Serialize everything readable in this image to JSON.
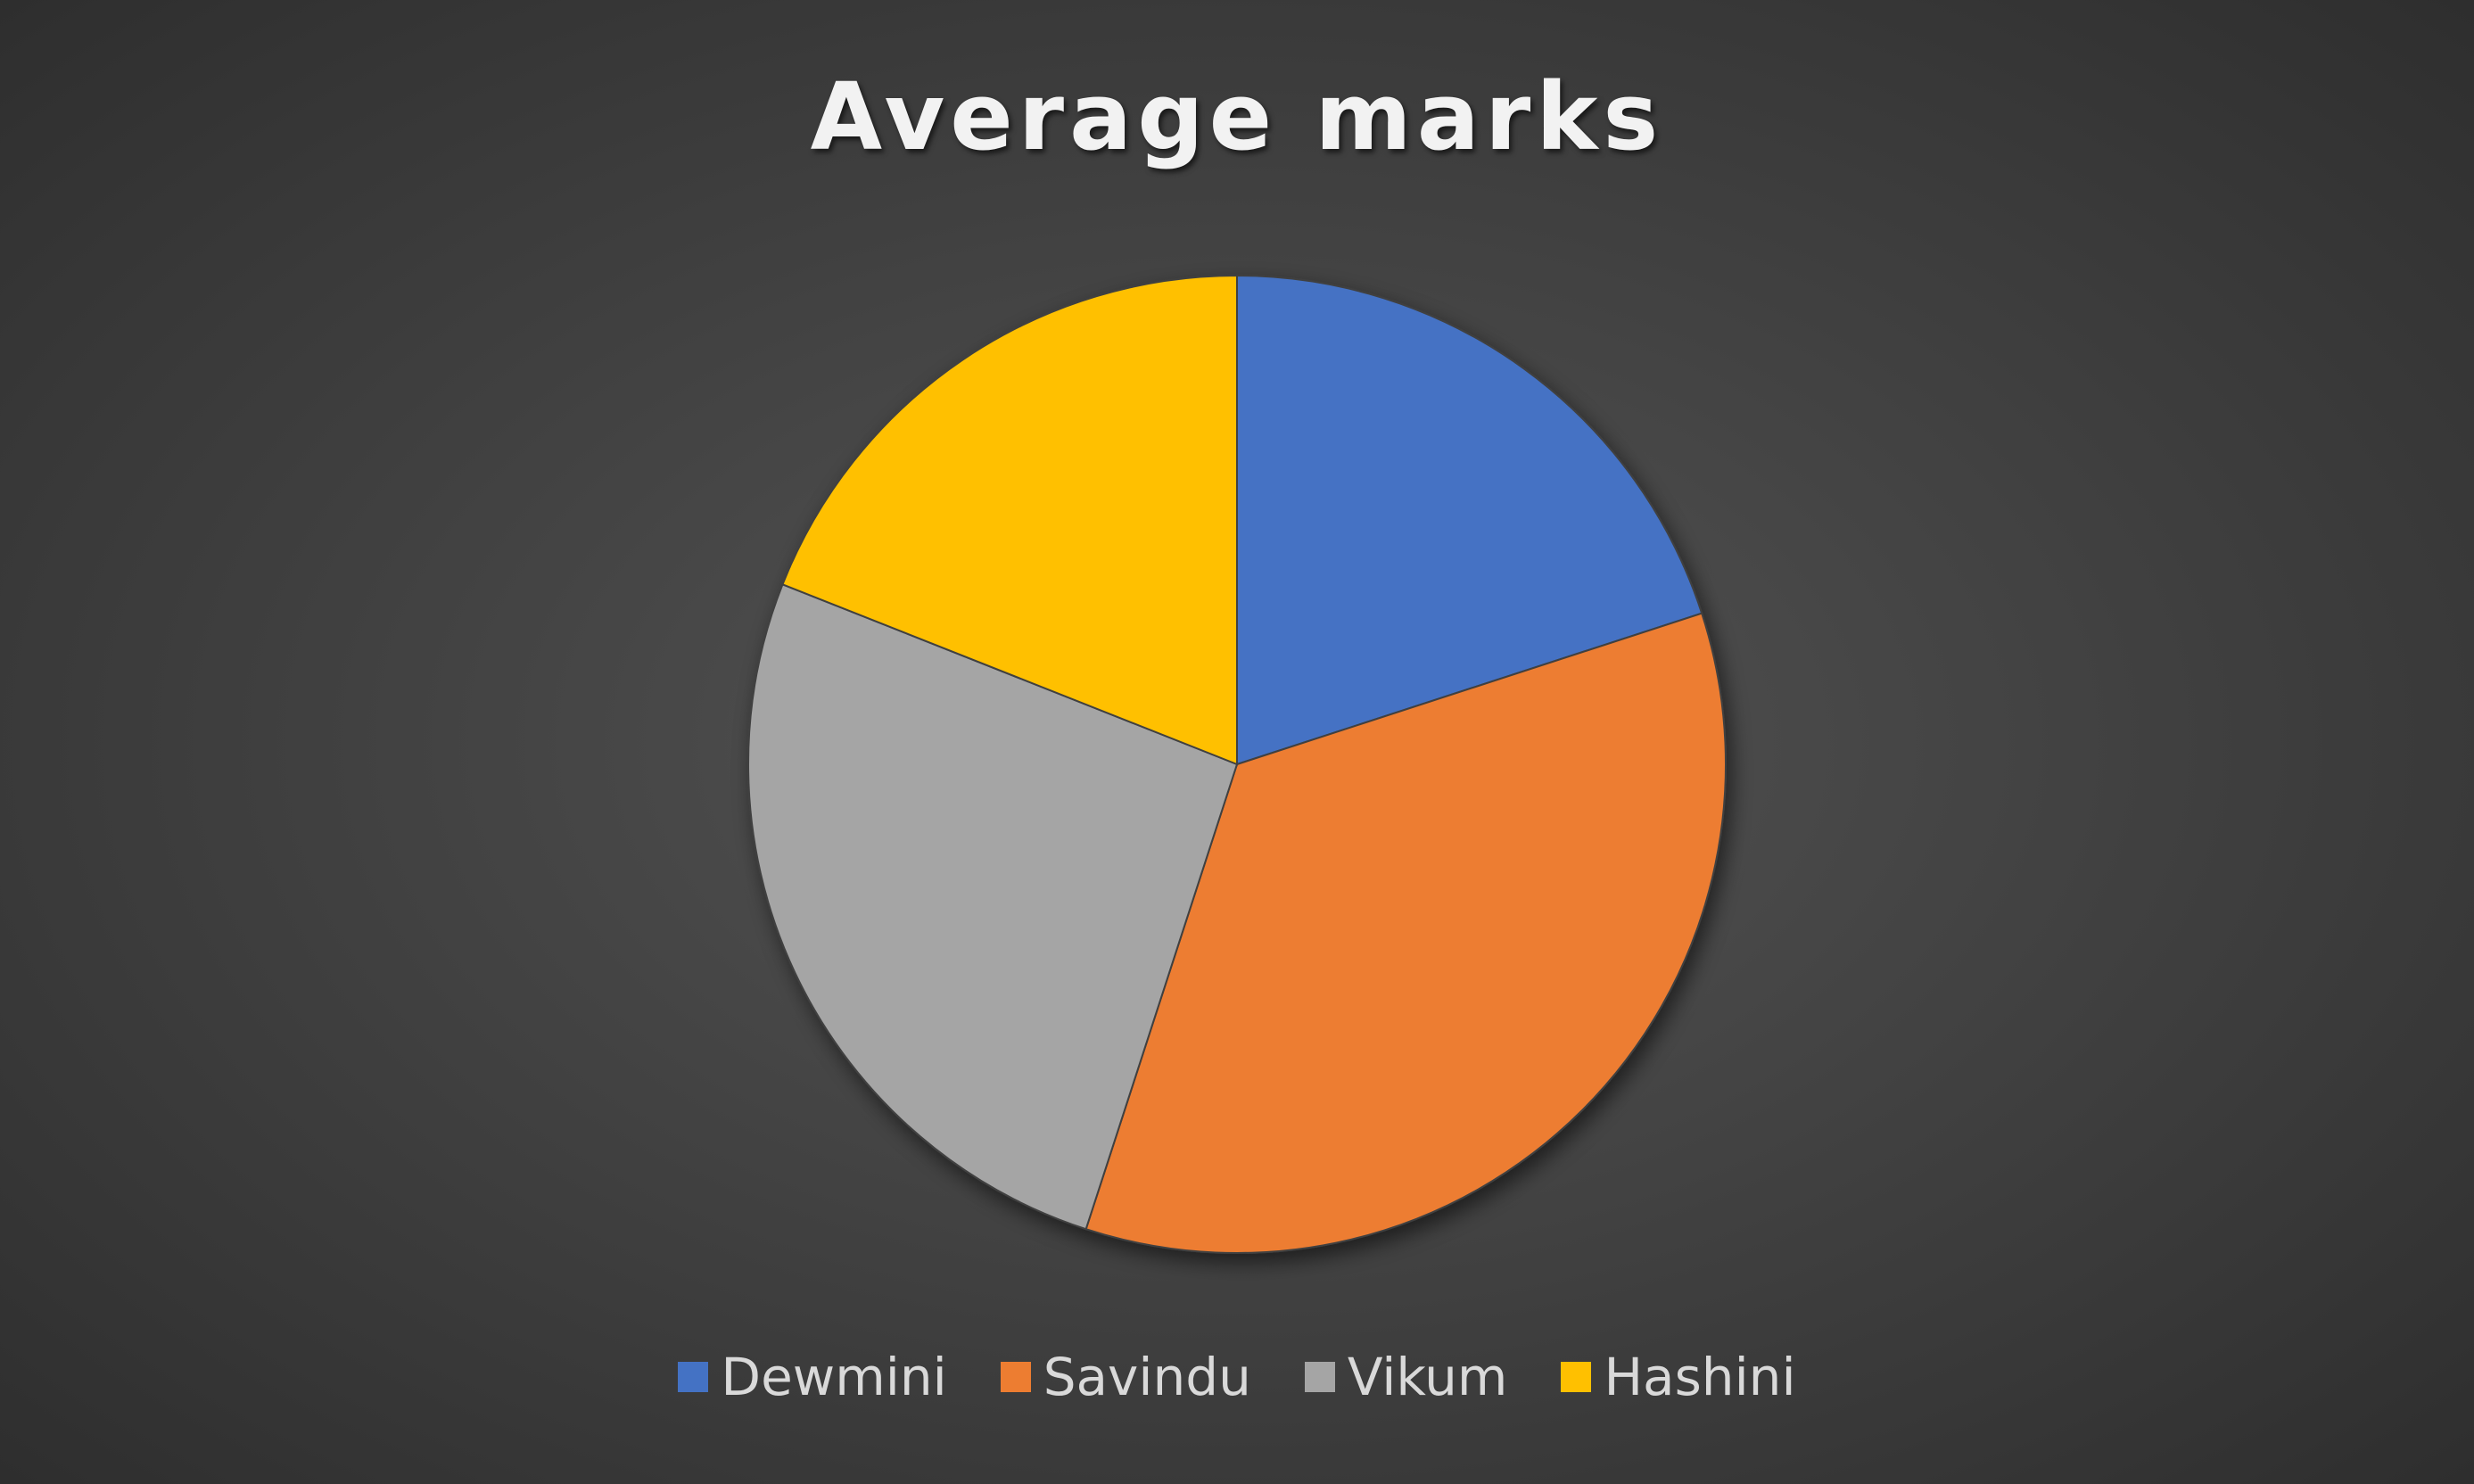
{
  "chart_data": {
    "type": "pie",
    "title": "Average marks",
    "categories": [
      "Dewmini",
      "Savindu",
      "Vikum",
      "Hashini"
    ],
    "values": [
      20,
      35,
      26,
      19
    ],
    "colors": [
      "#4472c4",
      "#ed7d31",
      "#a5a5a5",
      "#ffc000"
    ],
    "legend_position": "bottom",
    "start_angle": "12 o'clock, clockwise"
  }
}
